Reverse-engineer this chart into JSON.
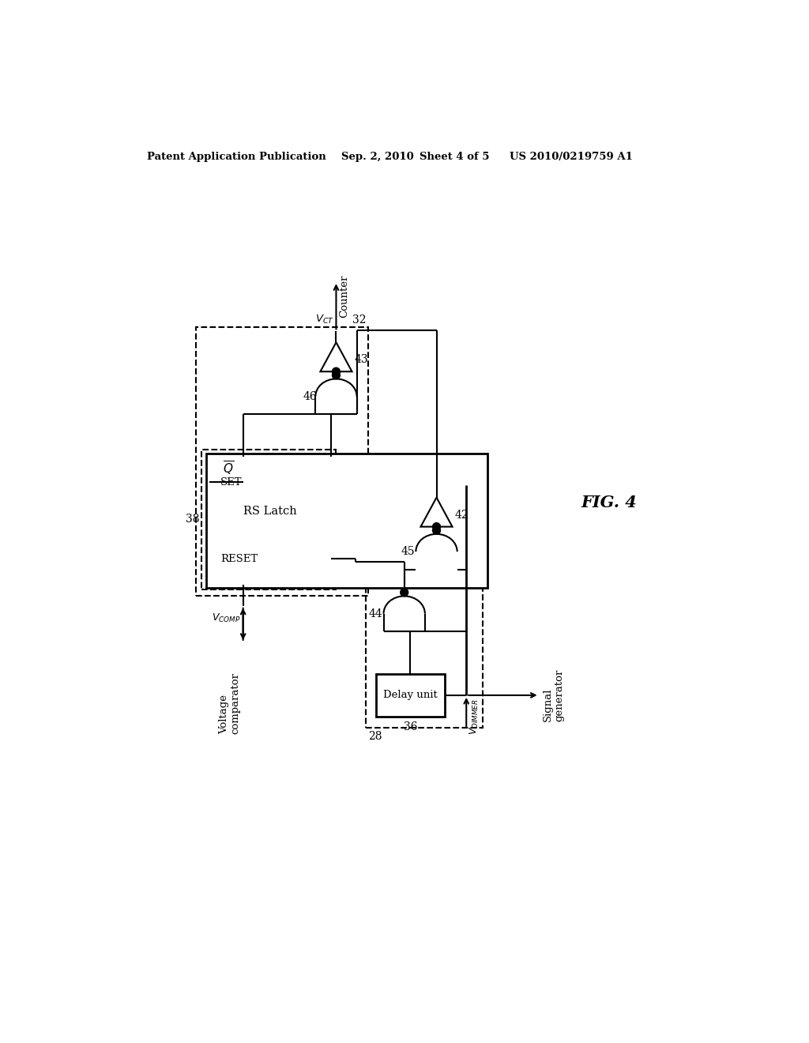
{
  "bg_color": "#ffffff",
  "line_color": "#000000",
  "header_left": "Patent Application Publication",
  "header_mid": "Sep. 2, 2010   Sheet 4 of 5",
  "header_right": "US 2010/0219759 A1",
  "fig_label": "FIG. 4"
}
